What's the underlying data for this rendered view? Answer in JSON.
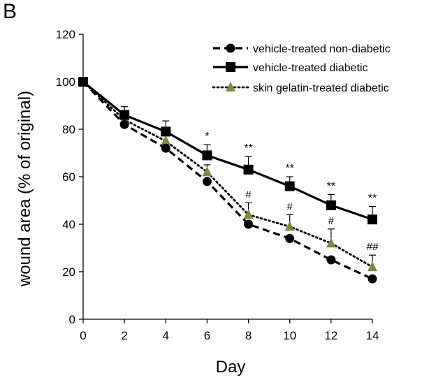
{
  "panel_label": "B",
  "chart_data": {
    "type": "line",
    "xlabel": "Day",
    "ylabel": "wound area (% of original)",
    "xlim": [
      0,
      14
    ],
    "ylim": [
      0,
      120
    ],
    "x": [
      0,
      2,
      4,
      6,
      8,
      10,
      12,
      14
    ],
    "xticks": [
      0,
      2,
      4,
      6,
      8,
      10,
      12,
      14
    ],
    "yticks": [
      0,
      20,
      40,
      60,
      80,
      100,
      120
    ],
    "grid": false,
    "legend_position": "top-right",
    "series": [
      {
        "name": "vehicle-treated  non-diabetic",
        "style": "dashed",
        "marker": "circle",
        "color": "#000000",
        "values": [
          100,
          82,
          72,
          58,
          40,
          34,
          25,
          17
        ],
        "errors": [
          0,
          0,
          0,
          0,
          0,
          0,
          0,
          0
        ]
      },
      {
        "name": "vehicle-treated diabetic",
        "style": "solid",
        "marker": "square",
        "color": "#000000",
        "values": [
          100,
          86,
          79,
          69,
          63,
          56,
          48,
          42
        ],
        "errors": [
          0,
          3.5,
          4.5,
          4.5,
          5.5,
          4,
          4.5,
          5.5
        ]
      },
      {
        "name": "skin gelatin-treated diabetic",
        "style": "dotted",
        "marker": "triangle",
        "color": "#000000",
        "marker_color": "#7a8a40",
        "values": [
          100,
          84,
          75,
          62,
          44,
          39,
          32,
          22
        ],
        "errors": [
          0,
          2.5,
          3,
          3,
          5,
          5,
          6,
          5
        ]
      }
    ],
    "annotations": [
      {
        "x": 6,
        "text": "*",
        "series": 1
      },
      {
        "x": 8,
        "text": "**",
        "series": 1
      },
      {
        "x": 10,
        "text": "**",
        "series": 1
      },
      {
        "x": 12,
        "text": "**",
        "series": 1
      },
      {
        "x": 14,
        "text": "**",
        "series": 1
      },
      {
        "x": 8,
        "text": "#",
        "series": 2
      },
      {
        "x": 10,
        "text": "#",
        "series": 2
      },
      {
        "x": 12,
        "text": "#",
        "series": 2
      },
      {
        "x": 14,
        "text": "##",
        "series": 2
      }
    ]
  }
}
